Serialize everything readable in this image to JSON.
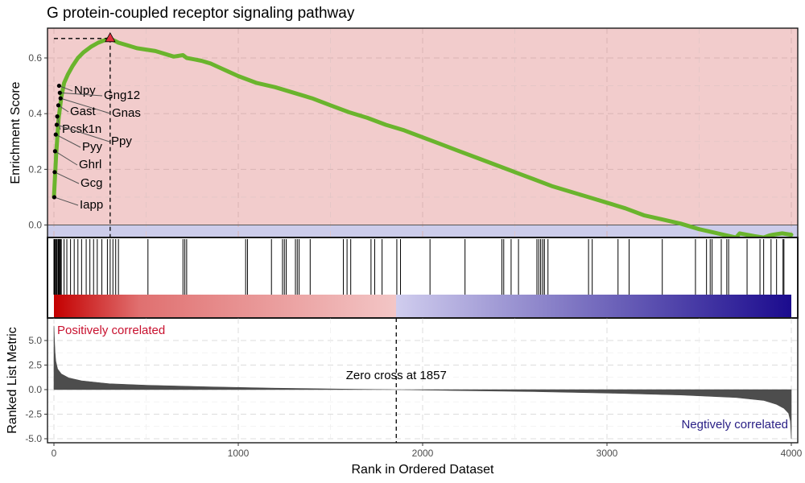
{
  "chart_data": {
    "type": "line",
    "title": "G protein-coupled receptor signaling pathway",
    "xlabel": "Rank in Ordered Dataset",
    "xlim": [
      0,
      4000
    ],
    "x_ticks": [
      0,
      1000,
      2000,
      3000,
      4000
    ],
    "x_tick_labels": [
      "0",
      "1000",
      "2000",
      "3000",
      "4000"
    ],
    "grid": true,
    "colors": {
      "es_line": "#6ab42d",
      "es_positive_bg": "#f2cccc",
      "es_negative_bg": "#ccccea",
      "peak_marker": "#e0303f",
      "positive_text": "#c8102e",
      "negative_text": "#2a2086",
      "metric_fill": "#4d4d4d",
      "ramp_red": "#c40000",
      "ramp_pink": "#f3c6c6",
      "ramp_lavender": "#d0cdee",
      "ramp_blue": "#1b0b8e"
    },
    "enrichment": {
      "ylabel": "Enrichment Score",
      "ylim": [
        -0.05,
        0.7
      ],
      "y_ticks": [
        0.0,
        0.2,
        0.4,
        0.6
      ],
      "y_tick_labels": [
        "0.0",
        "0.2",
        "0.4",
        "0.6"
      ],
      "peak": {
        "rank": 305,
        "es": 0.67
      },
      "curve_x": [
        0,
        12,
        25,
        40,
        55,
        75,
        100,
        130,
        160,
        200,
        240,
        280,
        305,
        350,
        400,
        450,
        500,
        550,
        600,
        650,
        700,
        720,
        760,
        800,
        850,
        900,
        950,
        1000,
        1100,
        1200,
        1300,
        1400,
        1500,
        1600,
        1700,
        1800,
        1900,
        2000,
        2100,
        2200,
        2300,
        2400,
        2500,
        2600,
        2700,
        2800,
        2900,
        3000,
        3100,
        3200,
        3300,
        3400,
        3500,
        3600,
        3700,
        3720,
        3800,
        3850,
        3880,
        3900,
        3950,
        4000
      ],
      "curve_y": [
        0.1,
        0.25,
        0.38,
        0.46,
        0.51,
        0.54,
        0.57,
        0.6,
        0.62,
        0.64,
        0.655,
        0.665,
        0.67,
        0.655,
        0.645,
        0.635,
        0.63,
        0.625,
        0.615,
        0.605,
        0.61,
        0.6,
        0.595,
        0.59,
        0.58,
        0.565,
        0.55,
        0.535,
        0.51,
        0.495,
        0.475,
        0.455,
        0.43,
        0.405,
        0.385,
        0.36,
        0.34,
        0.315,
        0.29,
        0.265,
        0.24,
        0.215,
        0.19,
        0.165,
        0.14,
        0.12,
        0.1,
        0.08,
        0.06,
        0.035,
        0.02,
        0.005,
        -0.015,
        -0.03,
        -0.045,
        -0.03,
        -0.04,
        -0.045,
        -0.038,
        -0.035,
        -0.03,
        -0.035
      ]
    },
    "genes": [
      {
        "name": "Npy",
        "rank": 28,
        "es": 0.5
      },
      {
        "name": "Gng12",
        "rank": 32,
        "es": 0.475
      },
      {
        "name": "Gnas",
        "rank": 36,
        "es": 0.455
      },
      {
        "name": "Gast",
        "rank": 24,
        "es": 0.43
      },
      {
        "name": "Pcsk1n",
        "rank": 18,
        "es": 0.39
      },
      {
        "name": "Ppy",
        "rank": 15,
        "es": 0.36
      },
      {
        "name": "Pyy",
        "rank": 10,
        "es": 0.325
      },
      {
        "name": "Ghrl",
        "rank": 6,
        "es": 0.265
      },
      {
        "name": "Gcg",
        "rank": 4,
        "es": 0.19
      },
      {
        "name": "Iapp",
        "rank": 2,
        "es": 0.1
      }
    ],
    "hit_ranks": [
      0,
      2,
      4,
      6,
      10,
      15,
      18,
      24,
      28,
      32,
      36,
      40,
      55,
      70,
      90,
      110,
      130,
      150,
      175,
      195,
      215,
      235,
      260,
      290,
      305,
      320,
      335,
      350,
      510,
      700,
      710,
      720,
      1040,
      1050,
      1180,
      1240,
      1250,
      1260,
      1310,
      1320,
      1330,
      1390,
      1570,
      1590,
      1610,
      1720,
      1740,
      1780,
      1860,
      1880,
      2040,
      2230,
      2430,
      2440,
      2480,
      2520,
      2620,
      2630,
      2640,
      2650,
      2660,
      2660,
      2680,
      2900,
      2920,
      3060,
      3120,
      3300,
      3480,
      3540,
      3560,
      3570,
      3620,
      3650,
      3660,
      3760,
      3830,
      3850,
      3890,
      3920,
      3955,
      3960
    ],
    "metric": {
      "ylabel": "Ranked List Metric",
      "ylim": [
        -5.0,
        7.0
      ],
      "y_ticks": [
        -5.0,
        -2.5,
        0.0,
        2.5,
        5.0
      ],
      "y_tick_labels": [
        "-5.0",
        "-2.5",
        "0.0",
        "2.5",
        "5.0"
      ],
      "zero_cross": 1857,
      "zero_cross_label": "Zero cross at 1857",
      "positive_label": "Positively correlated",
      "negative_label": "Negtively correlated",
      "curve_x": [
        0,
        3,
        6,
        10,
        20,
        40,
        80,
        150,
        300,
        500,
        800,
        1200,
        1600,
        1857,
        2200,
        2600,
        3000,
        3400,
        3700,
        3850,
        3920,
        3960,
        3985,
        3995,
        4000
      ],
      "curve_y": [
        6.5,
        5.0,
        3.8,
        2.9,
        2.1,
        1.6,
        1.2,
        0.9,
        0.6,
        0.45,
        0.3,
        0.15,
        0.05,
        0.0,
        -0.1,
        -0.2,
        -0.35,
        -0.55,
        -0.8,
        -1.1,
        -1.5,
        -1.9,
        -2.4,
        -3.2,
        -5.0
      ]
    }
  }
}
